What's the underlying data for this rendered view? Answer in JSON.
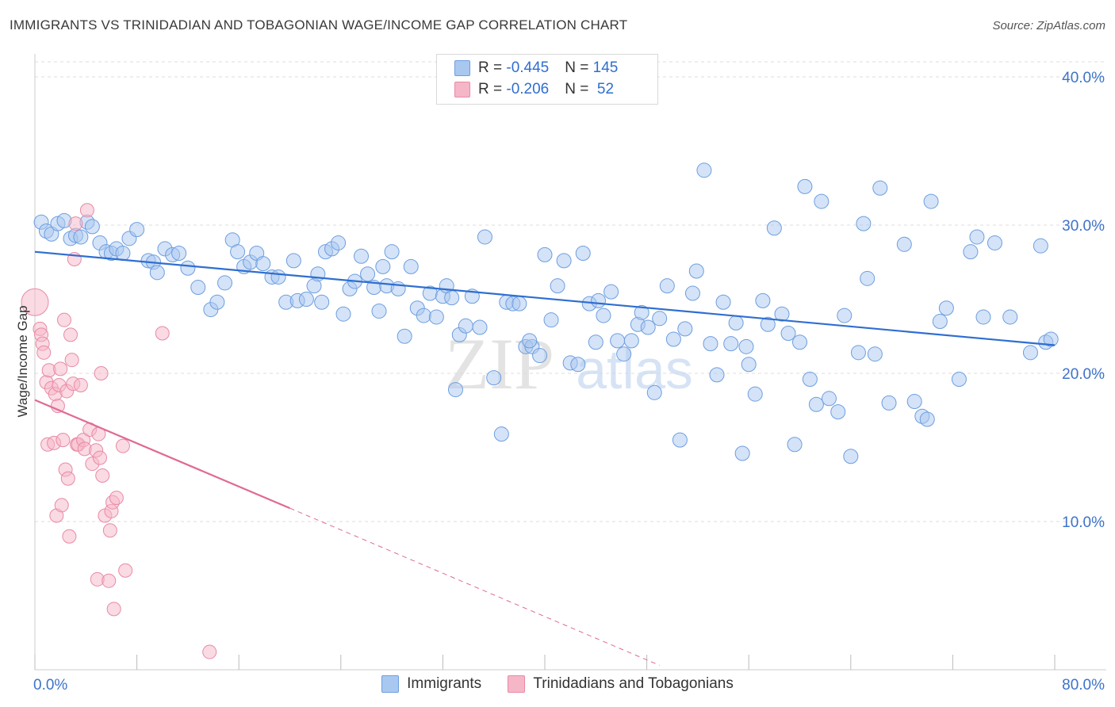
{
  "title": "IMMIGRANTS VS TRINIDADIAN AND TOBAGONIAN WAGE/INCOME GAP CORRELATION CHART",
  "source": "Source: ZipAtlas.com",
  "watermark": {
    "zip": "ZIP",
    "atlas": "atlas"
  },
  "legend": {
    "rows": [
      {
        "r_label": "R = ",
        "r_value": "-0.445",
        "n_label": "N = ",
        "n_value": "145",
        "color": "#a9c8f0"
      },
      {
        "r_label": "R = ",
        "r_value": "-0.206",
        "n_label": "N = ",
        "n_value": " 52",
        "color": "#f5b6c8"
      }
    ]
  },
  "bottom_legend": {
    "series1": "Immigrants",
    "series2": "Trinidadians and Tobagonians"
  },
  "colors": {
    "blue_fill": "#a9c8f0",
    "blue_stroke": "#6d9ee0",
    "blue_line": "#2f6ed1",
    "pink_fill": "#f5b6c8",
    "pink_stroke": "#e88aa6",
    "pink_line": "#e06a93",
    "axis_text": "#3d73c9",
    "grid": "#dddddd"
  },
  "chart_data": {
    "type": "scatter",
    "title": "IMMIGRANTS VS TRINIDADIAN AND TOBAGONIAN WAGE/INCOME GAP CORRELATION CHART",
    "xlabel": "",
    "ylabel": "Wage/Income Gap",
    "xlim": [
      0,
      80
    ],
    "ylim": [
      0,
      40
    ],
    "x_tick_labels": [
      "0.0%",
      "80.0%"
    ],
    "y_ticks": [
      10,
      20,
      30,
      40
    ],
    "y_tick_labels": [
      "10.0%",
      "20.0%",
      "30.0%",
      "40.0%"
    ],
    "grid": true,
    "legend_position": "top-center",
    "series": [
      {
        "name": "Immigrants",
        "r": -0.445,
        "n": 145,
        "trend": {
          "x0": 0,
          "y0": 28.2,
          "x1": 80,
          "y1": 21.9
        },
        "points": [
          [
            0.5,
            30.2
          ],
          [
            0.9,
            29.6
          ],
          [
            1.3,
            29.4
          ],
          [
            1.8,
            30.1
          ],
          [
            2.3,
            30.3
          ],
          [
            2.8,
            29.1
          ],
          [
            3.2,
            29.3
          ],
          [
            3.6,
            29.2
          ],
          [
            4.1,
            30.2
          ],
          [
            4.5,
            29.9
          ],
          [
            5.1,
            28.8
          ],
          [
            5.6,
            28.2
          ],
          [
            6.0,
            28.1
          ],
          [
            6.4,
            28.4
          ],
          [
            6.9,
            28.1
          ],
          [
            7.4,
            29.1
          ],
          [
            8.0,
            29.7
          ],
          [
            8.9,
            27.6
          ],
          [
            9.3,
            27.5
          ],
          [
            9.6,
            26.8
          ],
          [
            10.2,
            28.4
          ],
          [
            10.8,
            28.0
          ],
          [
            11.3,
            28.1
          ],
          [
            12.0,
            27.1
          ],
          [
            12.8,
            25.8
          ],
          [
            13.8,
            24.3
          ],
          [
            14.3,
            24.8
          ],
          [
            14.9,
            26.1
          ],
          [
            15.5,
            29.0
          ],
          [
            15.9,
            28.2
          ],
          [
            16.4,
            27.2
          ],
          [
            16.9,
            27.5
          ],
          [
            17.4,
            28.1
          ],
          [
            17.9,
            27.4
          ],
          [
            18.6,
            26.5
          ],
          [
            19.1,
            26.5
          ],
          [
            19.7,
            24.8
          ],
          [
            20.3,
            27.6
          ],
          [
            20.6,
            24.9
          ],
          [
            21.3,
            25.0
          ],
          [
            21.9,
            25.9
          ],
          [
            22.2,
            26.7
          ],
          [
            22.8,
            28.2
          ],
          [
            23.3,
            28.4
          ],
          [
            23.8,
            28.8
          ],
          [
            24.2,
            24.0
          ],
          [
            24.7,
            25.7
          ],
          [
            25.1,
            26.2
          ],
          [
            25.6,
            27.9
          ],
          [
            26.1,
            26.7
          ],
          [
            26.6,
            25.8
          ],
          [
            27.3,
            27.2
          ],
          [
            27.6,
            25.9
          ],
          [
            28.0,
            28.2
          ],
          [
            28.5,
            25.7
          ],
          [
            29.0,
            22.5
          ],
          [
            29.5,
            27.2
          ],
          [
            30.0,
            24.4
          ],
          [
            30.5,
            23.9
          ],
          [
            31.0,
            25.4
          ],
          [
            31.5,
            23.8
          ],
          [
            32.0,
            25.2
          ],
          [
            32.3,
            25.9
          ],
          [
            32.7,
            25.1
          ],
          [
            33.3,
            22.6
          ],
          [
            33.8,
            23.2
          ],
          [
            34.3,
            25.2
          ],
          [
            34.9,
            23.1
          ],
          [
            35.3,
            29.2
          ],
          [
            36.0,
            19.7
          ],
          [
            36.6,
            15.9
          ],
          [
            37.0,
            24.8
          ],
          [
            37.5,
            24.7
          ],
          [
            38.0,
            24.7
          ],
          [
            38.5,
            21.8
          ],
          [
            39.0,
            21.8
          ],
          [
            39.6,
            21.2
          ],
          [
            40.0,
            28.0
          ],
          [
            40.5,
            23.6
          ],
          [
            41.0,
            25.9
          ],
          [
            41.5,
            27.6
          ],
          [
            42.0,
            20.7
          ],
          [
            42.6,
            20.6
          ],
          [
            43.0,
            28.1
          ],
          [
            43.5,
            24.7
          ],
          [
            44.2,
            24.9
          ],
          [
            44.6,
            23.9
          ],
          [
            45.2,
            25.5
          ],
          [
            45.7,
            22.2
          ],
          [
            46.2,
            21.3
          ],
          [
            46.8,
            22.2
          ],
          [
            47.3,
            23.3
          ],
          [
            47.6,
            24.1
          ],
          [
            48.1,
            23.1
          ],
          [
            48.6,
            18.7
          ],
          [
            49.0,
            23.7
          ],
          [
            49.6,
            25.9
          ],
          [
            50.1,
            22.3
          ],
          [
            50.6,
            15.5
          ],
          [
            51.0,
            23.0
          ],
          [
            51.6,
            25.4
          ],
          [
            51.9,
            26.9
          ],
          [
            52.5,
            33.7
          ],
          [
            53.0,
            22.0
          ],
          [
            53.5,
            19.9
          ],
          [
            54.0,
            24.8
          ],
          [
            54.6,
            22.0
          ],
          [
            55.0,
            23.4
          ],
          [
            55.5,
            14.6
          ],
          [
            56.0,
            20.6
          ],
          [
            56.5,
            18.6
          ],
          [
            57.1,
            24.9
          ],
          [
            57.5,
            23.3
          ],
          [
            58.0,
            29.8
          ],
          [
            58.6,
            24.0
          ],
          [
            59.1,
            22.7
          ],
          [
            59.6,
            15.2
          ],
          [
            60.0,
            22.1
          ],
          [
            60.4,
            32.6
          ],
          [
            60.8,
            19.6
          ],
          [
            61.3,
            17.9
          ],
          [
            61.7,
            31.6
          ],
          [
            62.3,
            18.3
          ],
          [
            63.0,
            17.4
          ],
          [
            63.5,
            23.9
          ],
          [
            64.0,
            14.4
          ],
          [
            64.6,
            21.4
          ],
          [
            65.0,
            30.1
          ],
          [
            65.3,
            26.4
          ],
          [
            65.9,
            21.3
          ],
          [
            66.3,
            32.5
          ],
          [
            67.0,
            18.0
          ],
          [
            68.2,
            28.7
          ],
          [
            69.0,
            18.1
          ],
          [
            69.6,
            17.1
          ],
          [
            70.3,
            31.6
          ],
          [
            71.0,
            23.5
          ],
          [
            71.5,
            24.4
          ],
          [
            72.5,
            19.6
          ],
          [
            73.4,
            28.2
          ],
          [
            73.9,
            29.2
          ],
          [
            74.4,
            23.8
          ],
          [
            75.3,
            28.8
          ],
          [
            76.5,
            23.8
          ],
          [
            78.1,
            21.4
          ],
          [
            78.9,
            28.6
          ],
          [
            79.3,
            22.1
          ],
          [
            79.7,
            22.3
          ],
          [
            70.0,
            16.9
          ],
          [
            55.8,
            21.8
          ],
          [
            44.0,
            22.1
          ],
          [
            38.8,
            22.2
          ],
          [
            33.0,
            18.9
          ],
          [
            27.0,
            24.2
          ],
          [
            22.5,
            24.8
          ]
        ]
      },
      {
        "name": "Trinidadians and Tobagonians",
        "r": -0.206,
        "n": 52,
        "trend": {
          "x0": 0,
          "y0": 18.2,
          "x1": 20,
          "y1": 10.9
        },
        "trend_extension": {
          "x0": 20,
          "y0": 10.9,
          "x1": 49,
          "y1": 0.3
        },
        "points": [
          [
            0.0,
            24.8
          ],
          [
            0.4,
            23.0
          ],
          [
            0.5,
            22.6
          ],
          [
            0.6,
            22.0
          ],
          [
            0.7,
            21.4
          ],
          [
            0.9,
            19.4
          ],
          [
            1.0,
            15.2
          ],
          [
            1.1,
            20.2
          ],
          [
            1.3,
            19.0
          ],
          [
            1.5,
            15.3
          ],
          [
            1.6,
            18.6
          ],
          [
            1.7,
            10.4
          ],
          [
            1.8,
            17.8
          ],
          [
            1.9,
            19.2
          ],
          [
            2.0,
            20.3
          ],
          [
            2.1,
            11.1
          ],
          [
            2.2,
            15.5
          ],
          [
            2.3,
            23.6
          ],
          [
            2.4,
            13.5
          ],
          [
            2.5,
            18.8
          ],
          [
            2.6,
            12.9
          ],
          [
            2.7,
            9.0
          ],
          [
            2.8,
            22.6
          ],
          [
            2.9,
            20.9
          ],
          [
            3.0,
            19.3
          ],
          [
            3.1,
            27.7
          ],
          [
            3.2,
            30.1
          ],
          [
            3.3,
            15.2
          ],
          [
            3.4,
            15.2
          ],
          [
            3.6,
            19.2
          ],
          [
            3.8,
            15.5
          ],
          [
            3.9,
            14.9
          ],
          [
            4.1,
            31.0
          ],
          [
            4.3,
            16.2
          ],
          [
            4.5,
            13.9
          ],
          [
            4.8,
            14.8
          ],
          [
            4.9,
            6.1
          ],
          [
            5.0,
            15.9
          ],
          [
            5.1,
            14.3
          ],
          [
            5.2,
            20.0
          ],
          [
            5.3,
            13.1
          ],
          [
            5.5,
            10.4
          ],
          [
            5.8,
            6.0
          ],
          [
            5.9,
            9.4
          ],
          [
            6.0,
            10.7
          ],
          [
            6.1,
            11.3
          ],
          [
            6.2,
            4.1
          ],
          [
            6.4,
            11.6
          ],
          [
            6.9,
            15.1
          ],
          [
            7.1,
            6.7
          ],
          [
            10.0,
            22.7
          ],
          [
            13.7,
            1.2
          ]
        ]
      }
    ]
  }
}
